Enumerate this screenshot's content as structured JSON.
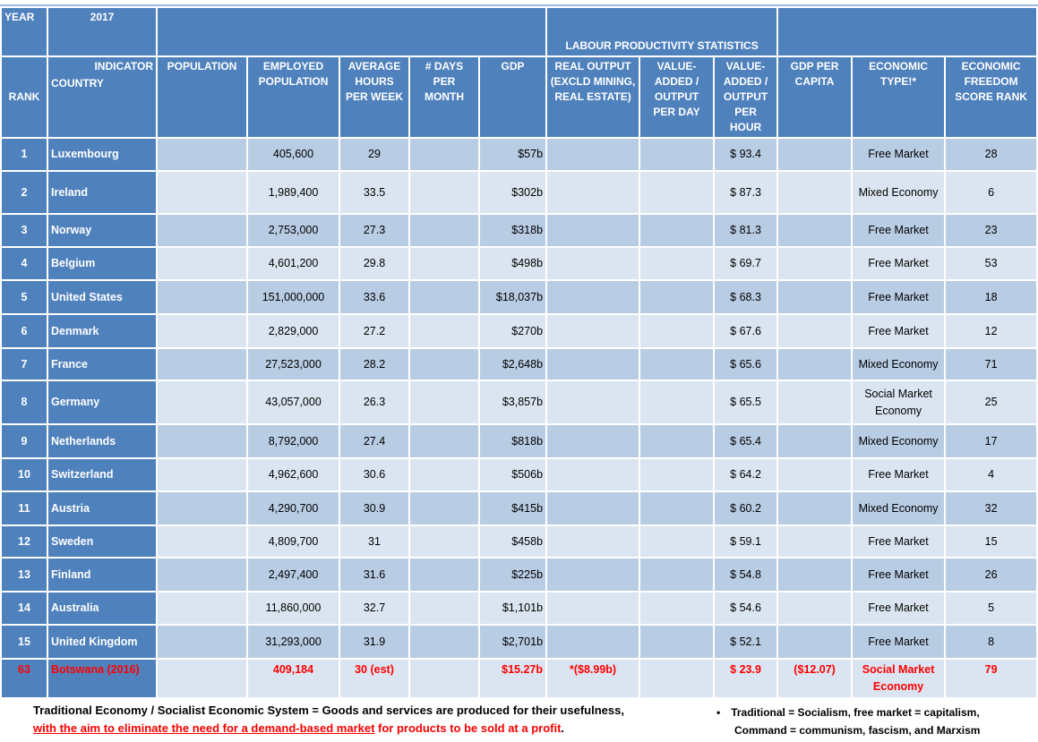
{
  "header": {
    "year_label": "YEAR",
    "year": "2017",
    "group_title": "LABOUR PRODUCTIVITY STATISTICS",
    "rank_label": "RANK",
    "indicator_label": "INDICATOR",
    "country_label": "COUNTRY",
    "columns": [
      "POPULATION",
      "EMPLOYED POPULATION",
      "AVERAGE HOURS PER WEEK",
      "# DAYS PER MONTH",
      "GDP",
      "REAL OUTPUT (EXCLD MINING, REAL ESTATE)",
      "VALUE-ADDED / OUTPUT PER DAY",
      "VALUE-ADDED / OUTPUT PER HOUR",
      "GDP PER CAPITA",
      "ECONOMIC TYPE!*",
      "ECONOMIC FREEDOM SCORE RANK"
    ]
  },
  "rows": [
    {
      "rank": "1",
      "country": "Luxembourg",
      "employed": "405,600",
      "hours": "29",
      "gdp": "$57b",
      "va_hour": "$ 93.4",
      "type": "Free Market",
      "freedom": "28"
    },
    {
      "rank": "2",
      "country": "Ireland",
      "employed": "1,989,400",
      "hours": "33.5",
      "gdp": "$302b",
      "va_hour": "$ 87.3",
      "type": "Mixed Economy",
      "freedom": "6"
    },
    {
      "rank": "3",
      "country": "Norway",
      "employed": "2,753,000",
      "hours": "27.3",
      "gdp": "$318b",
      "va_hour": "$ 81.3",
      "type": "Free Market",
      "freedom": "23"
    },
    {
      "rank": "4",
      "country": "Belgium",
      "employed": "4,601,200",
      "hours": "29.8",
      "gdp": "$498b",
      "va_hour": "$ 69.7",
      "type": "Free Market",
      "freedom": "53"
    },
    {
      "rank": "5",
      "country": "United States",
      "employed": "151,000,000",
      "hours": "33.6",
      "gdp": "$18,037b",
      "va_hour": "$ 68.3",
      "type": "Free Market",
      "freedom": "18"
    },
    {
      "rank": "6",
      "country": "Denmark",
      "employed": "2,829,000",
      "hours": "27.2",
      "gdp": "$270b",
      "va_hour": "$ 67.6",
      "type": "Free Market",
      "freedom": "12"
    },
    {
      "rank": "7",
      "country": "France",
      "employed": "27,523,000",
      "hours": "28.2",
      "gdp": "$2,648b",
      "va_hour": "$ 65.6",
      "type": "Mixed Economy",
      "freedom": "71"
    },
    {
      "rank": "8",
      "country": "Germany",
      "employed": "43,057,000",
      "hours": "26.3",
      "gdp": "$3,857b",
      "va_hour": "$ 65.5",
      "type": "Social Market Economy",
      "freedom": "25"
    },
    {
      "rank": "9",
      "country": "Netherlands",
      "employed": "8,792,000",
      "hours": "27.4",
      "gdp": "$818b",
      "va_hour": "$ 65.4",
      "type": "Mixed Economy",
      "freedom": "17"
    },
    {
      "rank": "10",
      "country": "Switzerland",
      "employed": "4,962,600",
      "hours": "30.6",
      "gdp": "$506b",
      "va_hour": "$ 64.2",
      "type": "Free Market",
      "freedom": "4"
    },
    {
      "rank": "11",
      "country": "Austria",
      "employed": "4,290,700",
      "hours": "30.9",
      "gdp": "$415b",
      "va_hour": "$ 60.2",
      "type": "Mixed Economy",
      "freedom": "32"
    },
    {
      "rank": "12",
      "country": "Sweden",
      "employed": "4,809,700",
      "hours": "31",
      "gdp": "$458b",
      "va_hour": "$ 59.1",
      "type": "Free Market",
      "freedom": "15"
    },
    {
      "rank": "13",
      "country": "Finland",
      "employed": "2,497,400",
      "hours": "31.6",
      "gdp": "$225b",
      "va_hour": "$ 54.8",
      "type": "Free Market",
      "freedom": "26"
    },
    {
      "rank": "14",
      "country": "Australia",
      "employed": "11,860,000",
      "hours": "32.7",
      "gdp": "$1,101b",
      "va_hour": "$ 54.6",
      "type": "Free Market",
      "freedom": "5"
    },
    {
      "rank": "15",
      "country": "United Kingdom",
      "employed": "31,293,000",
      "hours": "31.9",
      "gdp": "$2,701b",
      "va_hour": "$ 52.1",
      "type": "Free Market",
      "freedom": "8"
    }
  ],
  "botswana": {
    "rank": "63",
    "country": "Botswana (2016)",
    "employed": "409,184",
    "hours": "30 (est)",
    "gdp": "$15.27b",
    "real_output": "*($8.99b)",
    "va_hour": "$ 23.9",
    "gdp_per_capita": "($12.07)",
    "type": "Social Market Economy",
    "freedom": "79"
  },
  "footer": {
    "left_line1": "Traditional Economy / Socialist Economic System = Goods and services are produced for their usefulness,",
    "left_line2_underlined": "with the aim to eliminate the need for a demand-based market",
    "left_line2_rest": " for products to be sold at a profit",
    "left_line2_end": ".",
    "right_line1": "Traditional = Socialism, free market = capitalism,",
    "right_line2": "Command = communism, fascism, and Marxism"
  },
  "colors": {
    "header": "#4f81bd",
    "row_dark": "#b8cce4",
    "row_light": "#dbe5f1",
    "highlight": "#ff0000"
  }
}
